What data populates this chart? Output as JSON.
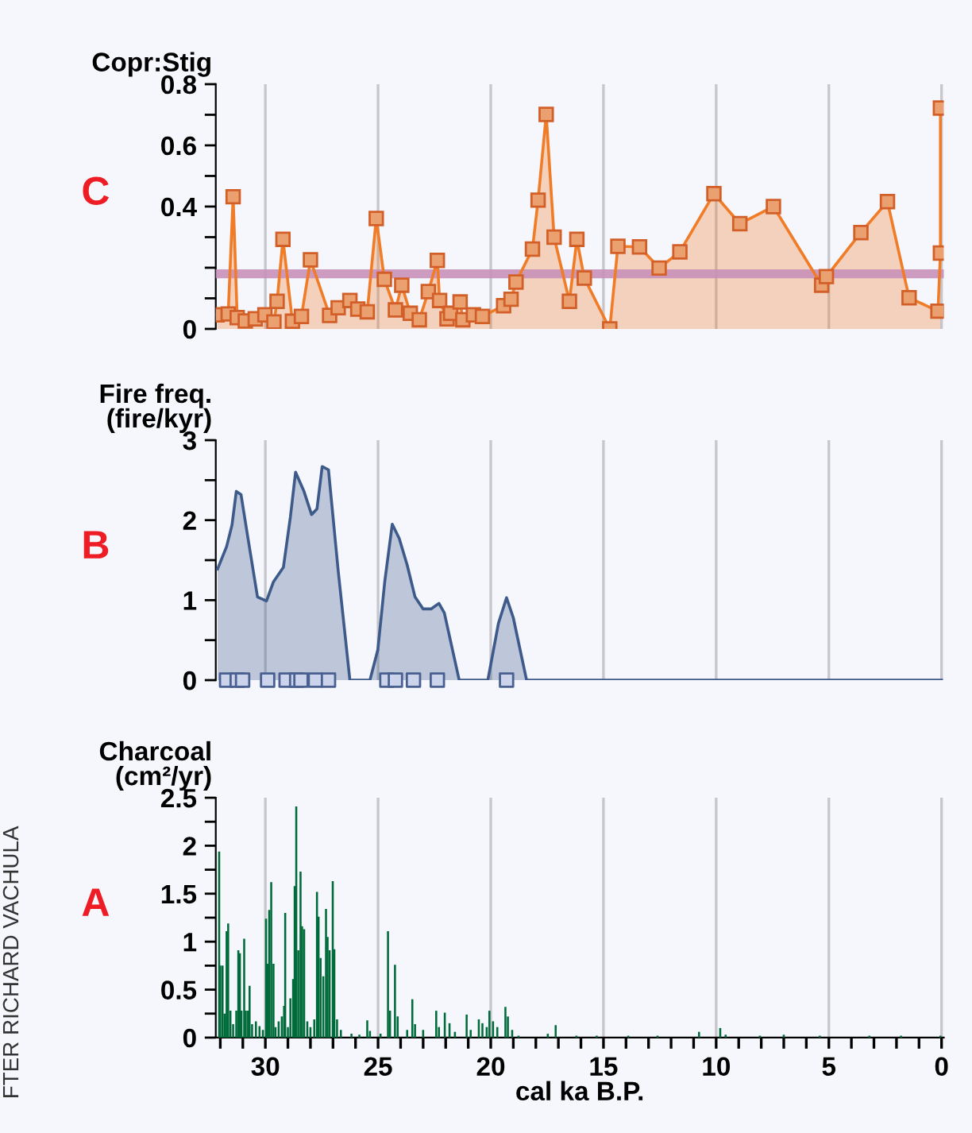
{
  "chart_data": [
    {
      "type": "area",
      "ylabel": "Copr:Stig",
      "annotations": [
        "C"
      ],
      "tick_labels": "y",
      "grid": "x",
      "marker": "square",
      "line_style": "solid",
      "xlim": [
        32.2,
        -0.1
      ],
      "ylim": [
        0,
        0.8
      ],
      "xticks": [
        30,
        25,
        20,
        15,
        10,
        5,
        0
      ],
      "yticks": [
        0,
        {
          "value": 0.1,
          "label": null
        },
        {
          "value": 0.2,
          "label": null
        },
        {
          "value": 0.3,
          "label": null
        },
        0.4,
        {
          "value": 0.5,
          "label": null
        },
        0.6,
        {
          "value": 0.7,
          "label": null
        },
        0.8
      ],
      "ref_lines": [
        {
          "axis": "y",
          "value": 0.18,
          "label": null,
          "color": "#c890b8"
        }
      ],
      "series": [
        {
          "color": "#f07c28",
          "x": [
            32.14,
            31.65,
            31.43,
            31.25,
            30.89,
            30.45,
            30.02,
            29.62,
            29.48,
            29.22,
            28.8,
            28.4,
            28.0,
            27.15,
            26.77,
            26.25,
            25.9,
            25.48,
            25.08,
            24.72,
            24.23,
            23.95,
            23.57,
            23.17,
            22.77,
            22.37,
            22.27,
            21.94,
            21.78,
            21.36,
            21.24,
            20.77,
            20.37,
            19.43,
            19.1,
            18.88,
            18.15,
            17.9,
            17.54,
            17.19,
            16.51,
            16.18,
            15.85,
            14.72,
            14.36,
            13.4,
            12.53,
            11.61,
            10.1,
            8.95,
            7.46,
            5.32,
            5.11,
            3.58,
            2.4,
            1.44,
            0.16,
            0.05,
            0.05
          ],
          "values": [
            0.046,
            0.049,
            0.432,
            0.037,
            0.026,
            0.033,
            0.046,
            0.023,
            0.09,
            0.293,
            0.025,
            0.041,
            0.226,
            0.044,
            0.069,
            0.093,
            0.065,
            0.056,
            0.361,
            0.162,
            0.062,
            0.143,
            0.051,
            0.03,
            0.122,
            0.224,
            0.093,
            0.033,
            0.051,
            0.088,
            0.03,
            0.046,
            0.041,
            0.076,
            0.097,
            0.153,
            0.261,
            0.421,
            0.701,
            0.3,
            0.09,
            0.293,
            0.166,
            0.0,
            0.27,
            0.268,
            0.199,
            0.252,
            0.442,
            0.344,
            0.4,
            0.143,
            0.171,
            0.315,
            0.416,
            0.102,
            0.058,
            0.248,
            0.722
          ]
        }
      ]
    },
    {
      "type": "area",
      "ylabel": "Fire freq.\n(fire/kyr)",
      "annotations": [
        "B"
      ],
      "tick_labels": "y",
      "grid": "x",
      "line_style": "solid",
      "xlim": [
        32.2,
        -0.1
      ],
      "ylim": [
        0,
        3
      ],
      "xticks": [
        30,
        25,
        20,
        15,
        10,
        5,
        0
      ],
      "yticks": [
        0,
        {
          "value": 0.5,
          "label": null
        },
        1,
        {
          "value": 1.5,
          "label": null
        },
        2,
        {
          "value": 2.5,
          "label": null
        },
        3
      ],
      "series": [
        {
          "color": "#3d5a8a",
          "x": [
            32.12,
            31.72,
            31.48,
            31.29,
            31.08,
            30.77,
            30.35,
            29.95,
            29.64,
            29.2,
            28.89,
            28.66,
            28.3,
            27.95,
            27.71,
            27.48,
            27.2,
            26.77,
            26.25,
            25.36,
            25.01,
            24.7,
            24.37,
            24.06,
            23.71,
            23.36,
            23.0,
            22.65,
            22.3,
            22.06,
            21.4,
            20.13,
            19.66,
            19.3,
            19.0,
            18.41,
            0
          ],
          "values": [
            1.39,
            1.67,
            1.94,
            2.36,
            2.32,
            1.77,
            1.04,
            0.99,
            1.23,
            1.41,
            2.04,
            2.6,
            2.37,
            2.07,
            2.14,
            2.67,
            2.63,
            1.37,
            0,
            0,
            0.38,
            1.24,
            1.95,
            1.77,
            1.44,
            1.04,
            0.89,
            0.89,
            0.96,
            0.84,
            0,
            0,
            0.71,
            1.03,
            0.78,
            0,
            0
          ]
        },
        {
          "type": "scatter",
          "marker": "square",
          "color": "#4a6090",
          "x": [
            31.72,
            31.25,
            31.01,
            29.9,
            29.08,
            28.61,
            28.42,
            27.78,
            27.2,
            24.61,
            24.23,
            23.43,
            22.37,
            19.3
          ],
          "values": [
            0,
            0,
            0,
            0,
            0,
            0,
            0,
            0,
            0,
            0,
            0,
            0,
            0,
            0
          ]
        }
      ]
    },
    {
      "type": "bar",
      "ylabel": "Charcoal\n(cm²/yr)",
      "xlabel": "cal ka B.P.",
      "annotations": [
        "A",
        "FTER RICHARD VACHULA"
      ],
      "grid": "x",
      "xlim": [
        32.2,
        -0.1
      ],
      "ylim": [
        0,
        2.5
      ],
      "xticks": [
        {
          "value": 32,
          "label": null
        },
        {
          "value": 31,
          "label": null
        },
        30,
        {
          "value": 29,
          "label": null
        },
        {
          "value": 28,
          "label": null
        },
        {
          "value": 27,
          "label": null
        },
        {
          "value": 26,
          "label": null
        },
        25,
        {
          "value": 24,
          "label": null
        },
        {
          "value": 23,
          "label": null
        },
        {
          "value": 22,
          "label": null
        },
        {
          "value": 21,
          "label": null
        },
        20,
        {
          "value": 19,
          "label": null
        },
        {
          "value": 18,
          "label": null
        },
        {
          "value": 17,
          "label": null
        },
        {
          "value": 16,
          "label": null
        },
        15,
        {
          "value": 14,
          "label": null
        },
        {
          "value": 13,
          "label": null
        },
        {
          "value": 12,
          "label": null
        },
        {
          "value": 11,
          "label": null
        },
        10,
        {
          "value": 9,
          "label": null
        },
        {
          "value": 8,
          "label": null
        },
        {
          "value": 7,
          "label": null
        },
        {
          "value": 6,
          "label": null
        },
        5,
        {
          "value": 4,
          "label": null
        },
        {
          "value": 3,
          "label": null
        },
        {
          "value": 2,
          "label": null
        },
        {
          "value": 1,
          "label": null
        },
        0
      ],
      "yticks": [
        0,
        {
          "value": 0.25,
          "label": null
        },
        0.5,
        {
          "value": 0.75,
          "label": null
        },
        1,
        {
          "value": 1.25,
          "label": null
        },
        1.5,
        {
          "value": 1.75,
          "label": null
        },
        2,
        {
          "value": 2.25,
          "label": null
        },
        2.5
      ],
      "series": [
        {
          "color": "#006b3a",
          "x": [
            32.05,
            32.0,
            31.9,
            31.81,
            31.72,
            31.65,
            31.55,
            31.43,
            31.29,
            31.2,
            31.13,
            31.06,
            30.94,
            30.87,
            30.77,
            30.7,
            30.59,
            30.42,
            30.26,
            30.11,
            29.97,
            29.9,
            29.83,
            29.74,
            29.64,
            29.55,
            29.41,
            29.27,
            29.17,
            29.12,
            29.0,
            28.89,
            28.77,
            28.7,
            28.63,
            28.54,
            28.44,
            28.37,
            28.28,
            28.14,
            28.0,
            27.83,
            27.71,
            27.64,
            27.55,
            27.43,
            27.31,
            27.24,
            27.15,
            27.01,
            26.94,
            26.82,
            26.65,
            26.18,
            25.83,
            25.48,
            25.36,
            24.89,
            24.56,
            24.47,
            24.25,
            24.13,
            23.71,
            23.48,
            23.36,
            23.0,
            22.42,
            22.3,
            22.04,
            21.83,
            21.59,
            21.07,
            20.89,
            20.53,
            20.37,
            20.18,
            20.06,
            19.9,
            19.71,
            19.35,
            19.24,
            19.05,
            18.77,
            17.47,
            17.12,
            16.2,
            15.3,
            13.9,
            12.6,
            10.76,
            9.82,
            9.58,
            8.06,
            7.0,
            5.4,
            3.2,
            1.8,
            0.05
          ],
          "values": [
            1.94,
            0.75,
            0.75,
            0.25,
            1.11,
            1.19,
            0.28,
            0.14,
            0.28,
            0.91,
            0.88,
            0.28,
            1.03,
            0.28,
            0.28,
            0.54,
            0.14,
            0.17,
            0.12,
            0.08,
            1.24,
            0.77,
            1.33,
            1.62,
            0.77,
            0.11,
            0.17,
            0.22,
            0.33,
            1.3,
            0.11,
            0.41,
            0.61,
            1.58,
            2.41,
            0.91,
            1.73,
            1.16,
            1.13,
            0.17,
            0.11,
            0.19,
            1.52,
            1.26,
            0.83,
            0.64,
            1.34,
            1.05,
            0.91,
            1.63,
            0.92,
            0.19,
            0.08,
            0.04,
            0.03,
            0.18,
            0.07,
            0.04,
            1.11,
            0.28,
            0.76,
            0.22,
            0.08,
            0.4,
            0.14,
            0.08,
            0.28,
            0.11,
            0.26,
            0.15,
            0.06,
            0.24,
            0.08,
            0.19,
            0.15,
            0.11,
            0.28,
            0.17,
            0.11,
            0.32,
            0.22,
            0.08,
            0.02,
            0.04,
            0.13,
            0.02,
            0.02,
            0.02,
            0.02,
            0.06,
            0.1,
            0.03,
            0.02,
            0.03,
            0.02,
            0.02,
            0.02,
            0.02
          ]
        }
      ]
    }
  ]
}
